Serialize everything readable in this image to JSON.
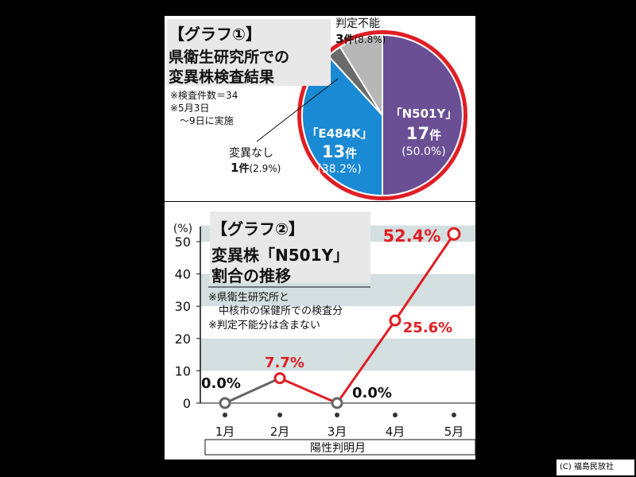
{
  "pie_panel": {
    "title": "【グラフ①】",
    "subtitle_lines": [
      "県衛生研究所での",
      "変異株検査結果"
    ],
    "notes": [
      "※検査件数＝34",
      "※5月3日",
      "　〜9日に実施"
    ],
    "labels": {
      "n501y": {
        "name": "「N501Y」",
        "count": "17",
        "unit": "件",
        "pct": "(50.0%)"
      },
      "e484k": {
        "name": "「E484K」",
        "count": "13",
        "unit": "件",
        "pct": "(38.2%)"
      },
      "none": {
        "line1": "変異なし",
        "count": "1",
        "unit": "件",
        "pct": "(2.9%)"
      },
      "undetermined": {
        "line1": "判定不能",
        "count": "3",
        "unit": "件",
        "pct": "(8.8%)"
      }
    }
  },
  "line_panel": {
    "title": "【グラフ②】",
    "subtitle_lines": [
      "変異株「N501Y」",
      "割合の推移"
    ],
    "notes": [
      "※県衛生研究所と",
      "　中核市の保健所での検査分",
      "※判定不能分は含まない"
    ],
    "y_unit": "(%)",
    "x_axis_title": "陽性判明月"
  },
  "credit": "(C) 福島民放社",
  "colors": {
    "purple": "#6b4f94",
    "blue": "#1a8ad4",
    "dark_gray": "#6a6a6a",
    "light_gray": "#b7b7b7",
    "red": "#e01e24",
    "band": "#d3dfe0"
  },
  "chart_data": [
    {
      "type": "pie",
      "title": "県衛生研究所での変異株検査結果",
      "total": 34,
      "slices": [
        {
          "label": "「N501Y」",
          "count": 17,
          "percent": 50.0,
          "color": "#6b4f94"
        },
        {
          "label": "「E484K」",
          "count": 13,
          "percent": 38.2,
          "color": "#1a8ad4"
        },
        {
          "label": "変異なし",
          "count": 1,
          "percent": 2.9,
          "color": "#6a6a6a"
        },
        {
          "label": "判定不能",
          "count": 3,
          "percent": 8.8,
          "color": "#b7b7b7"
        }
      ]
    },
    {
      "type": "line",
      "title": "変異株「N501Y」割合の推移",
      "xlabel": "陽性判明月",
      "ylabel": "(%)",
      "categories": [
        "1月",
        "2月",
        "3月",
        "4月",
        "5月"
      ],
      "values": [
        0.0,
        7.7,
        0.0,
        25.6,
        52.4
      ],
      "value_labels": [
        "0.0%",
        "7.7%",
        "0.0%",
        "25.6%",
        "52.4%"
      ],
      "yticks": [
        0,
        10,
        20,
        30,
        40,
        50
      ],
      "ylim": [
        0,
        55
      ],
      "grid": "alternating horizontal bands"
    }
  ]
}
